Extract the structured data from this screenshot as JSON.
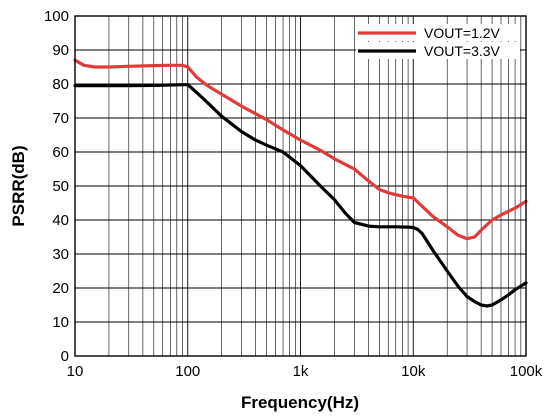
{
  "chart_data": {
    "type": "line",
    "xlabel": "Frequency(Hz)",
    "ylabel": "PSRR(dB)",
    "x_scale": "log",
    "xlim": [
      10,
      100000
    ],
    "ylim": [
      0,
      100
    ],
    "grid": true,
    "legend_position": "top-right",
    "x_ticks": [
      10,
      100,
      1000,
      10000,
      100000
    ],
    "x_tick_labels": [
      "10",
      "100",
      "1k",
      "10k",
      "100k"
    ],
    "y_ticks": [
      0,
      10,
      20,
      30,
      40,
      50,
      60,
      70,
      80,
      90,
      100
    ],
    "y_tick_labels": [
      "0",
      "10",
      "20",
      "30",
      "40",
      "50",
      "60",
      "70",
      "80",
      "90",
      "100"
    ],
    "series": [
      {
        "name": "VOUT=1.2V",
        "color": "#e03a3a",
        "x": [
          10,
          12,
          15,
          20,
          30,
          50,
          70,
          90,
          100,
          120,
          150,
          200,
          300,
          500,
          700,
          1000,
          1500,
          2000,
          3000,
          4000,
          5000,
          6000,
          8000,
          10000,
          12000,
          15000,
          20000,
          25000,
          30000,
          35000,
          40000,
          50000,
          60000,
          80000,
          100000
        ],
        "y": [
          87,
          85.5,
          85,
          85,
          85.2,
          85.4,
          85.5,
          85.5,
          85,
          82,
          79.5,
          77,
          73.5,
          69.5,
          66.5,
          63.5,
          60.5,
          58,
          55,
          51.5,
          49,
          48,
          47,
          46.5,
          44,
          41,
          38,
          35.5,
          34.5,
          35,
          37,
          40,
          41.5,
          43.5,
          45.5
        ]
      },
      {
        "name": "VOUT=3.3V",
        "color": "#000000",
        "x": [
          10,
          15,
          20,
          30,
          50,
          70,
          90,
          100,
          120,
          150,
          200,
          300,
          400,
          500,
          700,
          1000,
          1500,
          2000,
          2500,
          3000,
          4000,
          5000,
          7000,
          9000,
          10000,
          11000,
          12000,
          15000,
          20000,
          25000,
          30000,
          35000,
          40000,
          45000,
          50000,
          60000,
          70000,
          80000,
          100000
        ],
        "y": [
          79.5,
          79.5,
          79.5,
          79.5,
          79.6,
          79.7,
          79.8,
          79.8,
          77.5,
          74.5,
          70.5,
          66,
          63.5,
          62,
          60,
          56,
          50,
          46,
          42,
          39.3,
          38.2,
          38,
          38,
          37.9,
          37.8,
          37.2,
          36,
          31,
          25,
          20.5,
          17.5,
          16,
          15,
          14.7,
          15,
          16.5,
          18,
          19.5,
          21.5
        ]
      }
    ]
  }
}
